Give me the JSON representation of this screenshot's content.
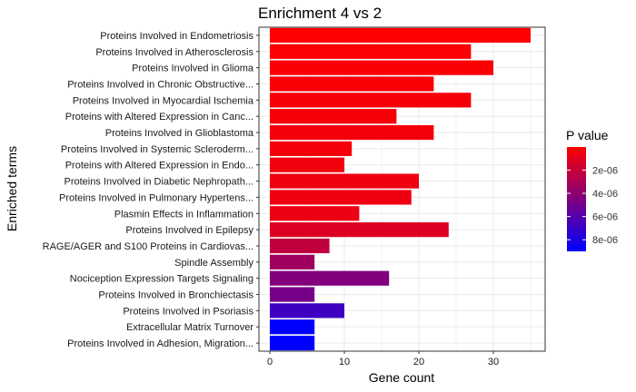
{
  "chart_data": {
    "type": "bar",
    "orientation": "horizontal",
    "title": "Enrichment 4 vs 2",
    "xlabel": "Gene count",
    "ylabel": "Enriched terms",
    "xlim": [
      0,
      36.75
    ],
    "x_ticks": [
      0,
      10,
      20,
      30
    ],
    "grid": true,
    "legend_position": "right",
    "colors": {
      "low_p": "#ff0000",
      "high_p": "#0000ff",
      "panel_border": "#333333",
      "grid": "#ebebeb"
    },
    "categories": [
      "Proteins Involved in Endometriosis",
      "Proteins Involved in Atherosclerosis",
      "Proteins Involved in Glioma",
      "Proteins Involved in Chronic Obstructive...",
      "Proteins Involved in Myocardial Ischemia",
      "Proteins with Altered Expression in Canc...",
      "Proteins Involved in Glioblastoma",
      "Proteins Involved in Systemic Scleroderm...",
      "Proteins with Altered Expression in Endo...",
      "Proteins Involved in Diabetic Nephropath...",
      "Proteins Involved in Pulmonary Hypertens...",
      "Plasmin Effects in Inflammation",
      "Proteins Involved in Epilepsy",
      "RAGE/AGER and S100 Proteins in Cardiovas...",
      "Spindle Assembly",
      "Nociception Expression Targets Signaling",
      "Proteins Involved in Bronchiectasis",
      "Proteins Involved in Psoriasis",
      "Extracellular Matrix Turnover",
      "Proteins Involved in Adhesion, Migration..."
    ],
    "values": [
      35,
      27,
      30,
      22,
      27,
      17,
      22,
      11,
      10,
      20,
      19,
      12,
      24,
      8,
      6,
      16,
      6,
      10,
      6,
      6
    ],
    "p_values": [
      1e-08,
      1e-07,
      2e-07,
      2e-07,
      3e-07,
      3e-07,
      4e-07,
      4e-07,
      5e-07,
      6e-07,
      6e-07,
      7e-07,
      1.2e-06,
      2.2e-06,
      3.4e-06,
      4.4e-06,
      4.8e-06,
      6.8e-06,
      9e-06,
      9e-06
    ],
    "legend": {
      "title": "P value",
      "range": [
        1e-08,
        9e-06
      ],
      "ticks": [
        2e-06,
        4e-06,
        6e-06,
        8e-06
      ],
      "tick_labels": [
        "2e-06",
        "4e-06",
        "6e-06",
        "8e-06"
      ]
    }
  }
}
